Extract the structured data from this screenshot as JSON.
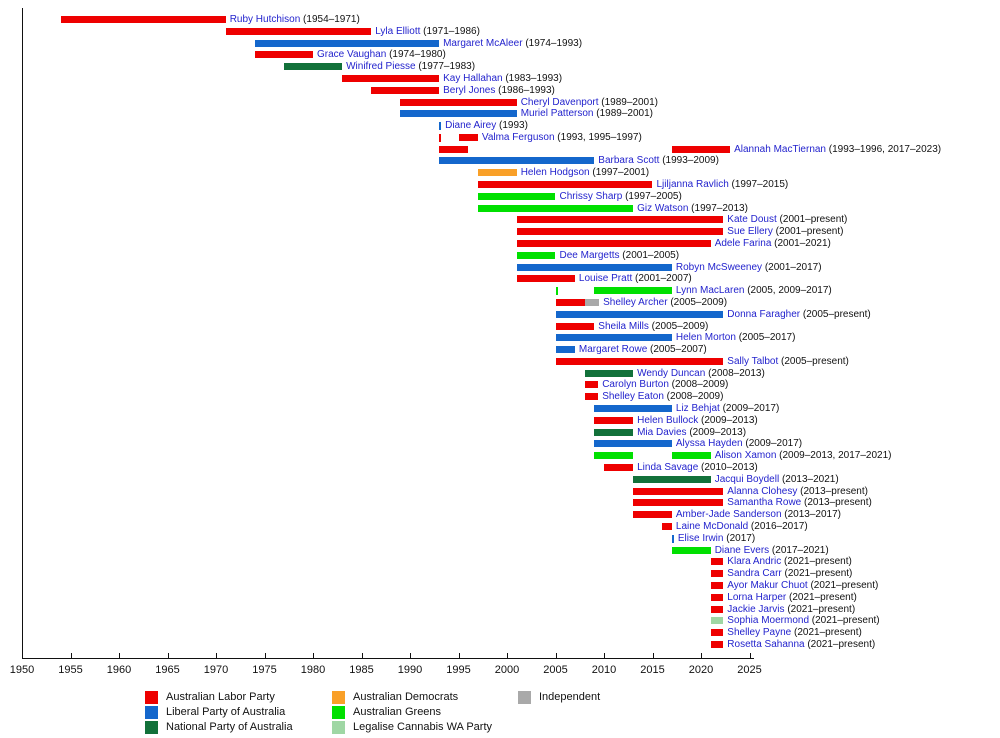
{
  "chart_data": {
    "type": "bar",
    "variant": "gantt-timeline",
    "title": "",
    "xlabel": "",
    "ylabel": "",
    "grid": false,
    "legend_position": "bottom",
    "axis": {
      "min": 1950,
      "max": 2025,
      "step": 5,
      "unit": "year",
      "present_value": 2022.3
    },
    "x_ticks": [
      1950,
      1955,
      1960,
      1965,
      1970,
      1975,
      1980,
      1985,
      1990,
      1995,
      2000,
      2005,
      2010,
      2015,
      2020,
      2025
    ],
    "text_colors": {
      "name": "#2323cd",
      "years": "#111111",
      "axis": "#111111"
    },
    "parties": {
      "labor": {
        "label": "Australian Labor Party",
        "color": "#ee0000"
      },
      "liberal": {
        "label": "Liberal Party of Australia",
        "color": "#1467cc"
      },
      "national": {
        "label": "National Party of Australia",
        "color": "#12713a"
      },
      "democrats": {
        "label": "Australian Democrats",
        "color": "#f9a028"
      },
      "greens": {
        "label": "Australian Greens",
        "color": "#00e000"
      },
      "legalise_cannabis": {
        "label": "Legalise Cannabis WA Party",
        "color": "#9fd7a4"
      },
      "independent": {
        "label": "Independent",
        "color": "#a9a9a9"
      }
    },
    "legend": {
      "columns": [
        [
          "labor",
          "liberal",
          "national"
        ],
        [
          "democrats",
          "greens",
          "legalise_cannabis"
        ],
        [
          "independent"
        ]
      ]
    },
    "people": [
      {
        "name": "Ruby Hutchison",
        "years": "(1954–1971)",
        "segments": [
          {
            "from": 1954,
            "to": 1971,
            "party": "labor"
          }
        ]
      },
      {
        "name": "Lyla Elliott",
        "years": "(1971–1986)",
        "segments": [
          {
            "from": 1971,
            "to": 1986,
            "party": "labor"
          }
        ]
      },
      {
        "name": "Margaret McAleer",
        "years": "(1974–1993)",
        "segments": [
          {
            "from": 1974,
            "to": 1993,
            "party": "liberal"
          }
        ]
      },
      {
        "name": "Grace Vaughan",
        "years": "(1974–1980)",
        "segments": [
          {
            "from": 1974,
            "to": 1980,
            "party": "labor"
          }
        ]
      },
      {
        "name": "Winifred Piesse",
        "years": "(1977–1983)",
        "segments": [
          {
            "from": 1977,
            "to": 1983,
            "party": "national"
          }
        ]
      },
      {
        "name": "Kay Hallahan",
        "years": "(1983–1993)",
        "segments": [
          {
            "from": 1983,
            "to": 1993,
            "party": "labor"
          }
        ]
      },
      {
        "name": "Beryl Jones",
        "years": "(1986–1993)",
        "segments": [
          {
            "from": 1986,
            "to": 1993,
            "party": "labor"
          }
        ]
      },
      {
        "name": "Cheryl Davenport",
        "years": "(1989–2001)",
        "segments": [
          {
            "from": 1989,
            "to": 2001,
            "party": "labor"
          }
        ]
      },
      {
        "name": "Muriel Patterson",
        "years": "(1989–2001)",
        "segments": [
          {
            "from": 1989,
            "to": 2001,
            "party": "liberal"
          }
        ]
      },
      {
        "name": "Diane Airey",
        "years": "(1993)",
        "segments": [],
        "marks": [
          {
            "year": 1993,
            "party": "liberal"
          }
        ]
      },
      {
        "name": "Valma Ferguson",
        "years": "(1993, 1995–1997)",
        "segments": [
          {
            "from": 1995,
            "to": 1997,
            "party": "labor"
          }
        ],
        "marks": [
          {
            "year": 1993,
            "party": "labor"
          }
        ]
      },
      {
        "name": "Alannah MacTiernan",
        "years": "(1993–1996, 2017–2023)",
        "segments": [
          {
            "from": 1993,
            "to": 1996,
            "party": "labor"
          },
          {
            "from": 2017,
            "to": 2023,
            "party": "labor"
          }
        ]
      },
      {
        "name": "Barbara Scott",
        "years": "(1993–2009)",
        "segments": [
          {
            "from": 1993,
            "to": 2009,
            "party": "liberal"
          }
        ]
      },
      {
        "name": "Helen Hodgson",
        "years": "(1997–2001)",
        "segments": [
          {
            "from": 1997,
            "to": 2001,
            "party": "democrats"
          }
        ]
      },
      {
        "name": "Ljiljanna Ravlich",
        "years": "(1997–2015)",
        "segments": [
          {
            "from": 1997,
            "to": 2015,
            "party": "labor"
          }
        ]
      },
      {
        "name": "Chrissy Sharp",
        "years": "(1997–2005)",
        "segments": [
          {
            "from": 1997,
            "to": 2005,
            "party": "greens"
          }
        ]
      },
      {
        "name": "Giz Watson",
        "years": "(1997–2013)",
        "segments": [
          {
            "from": 1997,
            "to": 2013,
            "party": "greens"
          }
        ]
      },
      {
        "name": "Kate Doust",
        "years": "(2001–present)",
        "segments": [
          {
            "from": 2001,
            "to": "present",
            "party": "labor"
          }
        ]
      },
      {
        "name": "Sue Ellery",
        "years": "(2001–present)",
        "segments": [
          {
            "from": 2001,
            "to": "present",
            "party": "labor"
          }
        ]
      },
      {
        "name": "Adele Farina",
        "years": "(2001–2021)",
        "segments": [
          {
            "from": 2001,
            "to": 2021,
            "party": "labor"
          }
        ]
      },
      {
        "name": "Dee Margetts",
        "years": "(2001–2005)",
        "segments": [
          {
            "from": 2001,
            "to": 2005,
            "party": "greens"
          }
        ]
      },
      {
        "name": "Robyn McSweeney",
        "years": "(2001–2017)",
        "segments": [
          {
            "from": 2001,
            "to": 2017,
            "party": "liberal"
          }
        ]
      },
      {
        "name": "Louise Pratt",
        "years": "(2001–2007)",
        "segments": [
          {
            "from": 2001,
            "to": 2007,
            "party": "labor"
          }
        ]
      },
      {
        "name": "Lynn MacLaren",
        "years": "(2005, 2009–2017)",
        "segments": [
          {
            "from": 2009,
            "to": 2017,
            "party": "greens"
          }
        ],
        "marks": [
          {
            "year": 2005,
            "party": "greens"
          }
        ]
      },
      {
        "name": "Shelley Archer",
        "years": "(2005–2009)",
        "segments": [
          {
            "from": 2005,
            "to": 2008,
            "party": "labor"
          },
          {
            "from": 2008,
            "to": 2009.5,
            "party": "independent"
          }
        ]
      },
      {
        "name": "Donna Faragher",
        "years": "(2005–present)",
        "segments": [
          {
            "from": 2005,
            "to": "present",
            "party": "liberal"
          }
        ]
      },
      {
        "name": "Sheila Mills",
        "years": "(2005–2009)",
        "segments": [
          {
            "from": 2005,
            "to": 2009,
            "party": "labor"
          }
        ]
      },
      {
        "name": "Helen Morton",
        "years": "(2005–2017)",
        "segments": [
          {
            "from": 2005,
            "to": 2017,
            "party": "liberal"
          }
        ]
      },
      {
        "name": "Margaret Rowe",
        "years": "(2005–2007)",
        "segments": [
          {
            "from": 2005,
            "to": 2007,
            "party": "liberal"
          }
        ]
      },
      {
        "name": "Sally Talbot",
        "years": "(2005–present)",
        "segments": [
          {
            "from": 2005,
            "to": "present",
            "party": "labor"
          }
        ]
      },
      {
        "name": "Wendy Duncan",
        "years": "(2008–2013)",
        "segments": [
          {
            "from": 2008,
            "to": 2013,
            "party": "national"
          }
        ]
      },
      {
        "name": "Carolyn Burton",
        "years": "(2008–2009)",
        "segments": [
          {
            "from": 2008,
            "to": 2009.4,
            "party": "labor"
          }
        ]
      },
      {
        "name": "Shelley Eaton",
        "years": "(2008–2009)",
        "segments": [
          {
            "from": 2008,
            "to": 2009.4,
            "party": "labor"
          }
        ]
      },
      {
        "name": "Liz Behjat",
        "years": "(2009–2017)",
        "segments": [
          {
            "from": 2009,
            "to": 2017,
            "party": "liberal"
          }
        ]
      },
      {
        "name": "Helen Bullock",
        "years": "(2009–2013)",
        "segments": [
          {
            "from": 2009,
            "to": 2013,
            "party": "labor"
          }
        ]
      },
      {
        "name": "Mia Davies",
        "years": "(2009–2013)",
        "segments": [
          {
            "from": 2009,
            "to": 2013,
            "party": "national"
          }
        ]
      },
      {
        "name": "Alyssa Hayden",
        "years": "(2009–2017)",
        "segments": [
          {
            "from": 2009,
            "to": 2017,
            "party": "liberal"
          }
        ]
      },
      {
        "name": "Alison Xamon",
        "years": "(2009–2013, 2017–2021)",
        "segments": [
          {
            "from": 2009,
            "to": 2013,
            "party": "greens"
          },
          {
            "from": 2017,
            "to": 2021,
            "party": "greens"
          }
        ]
      },
      {
        "name": "Linda Savage",
        "years": "(2010–2013)",
        "segments": [
          {
            "from": 2010,
            "to": 2013,
            "party": "labor"
          }
        ]
      },
      {
        "name": "Jacqui Boydell",
        "years": "(2013–2021)",
        "segments": [
          {
            "from": 2013,
            "to": 2021,
            "party": "national"
          }
        ]
      },
      {
        "name": "Alanna Clohesy",
        "years": "(2013–present)",
        "segments": [
          {
            "from": 2013,
            "to": "present",
            "party": "labor"
          }
        ]
      },
      {
        "name": "Samantha Rowe",
        "years": "(2013–present)",
        "segments": [
          {
            "from": 2013,
            "to": "present",
            "party": "labor"
          }
        ]
      },
      {
        "name": "Amber-Jade Sanderson",
        "years": "(2013–2017)",
        "segments": [
          {
            "from": 2013,
            "to": 2017,
            "party": "labor"
          }
        ]
      },
      {
        "name": "Laine McDonald",
        "years": "(2016–2017)",
        "segments": [
          {
            "from": 2016,
            "to": 2017,
            "party": "labor"
          }
        ]
      },
      {
        "name": "Elise Irwin",
        "years": "(2017)",
        "segments": [],
        "marks": [
          {
            "year": 2017,
            "party": "liberal"
          }
        ]
      },
      {
        "name": "Diane Evers",
        "years": "(2017–2021)",
        "segments": [
          {
            "from": 2017,
            "to": 2021,
            "party": "greens"
          }
        ]
      },
      {
        "name": "Klara Andric",
        "years": "(2021–present)",
        "segments": [
          {
            "from": 2021,
            "to": "present",
            "party": "labor"
          }
        ]
      },
      {
        "name": "Sandra Carr",
        "years": "(2021–present)",
        "segments": [
          {
            "from": 2021,
            "to": "present",
            "party": "labor"
          }
        ]
      },
      {
        "name": "Ayor Makur Chuot",
        "years": "(2021–present)",
        "segments": [
          {
            "from": 2021,
            "to": "present",
            "party": "labor"
          }
        ]
      },
      {
        "name": "Lorna Harper",
        "years": "(2021–present)",
        "segments": [
          {
            "from": 2021,
            "to": "present",
            "party": "labor"
          }
        ]
      },
      {
        "name": "Jackie Jarvis",
        "years": "(2021–present)",
        "segments": [
          {
            "from": 2021,
            "to": "present",
            "party": "labor"
          }
        ]
      },
      {
        "name": "Sophia Moermond",
        "years": "(2021–present)",
        "segments": [
          {
            "from": 2021,
            "to": "present",
            "party": "legalise_cannabis"
          }
        ]
      },
      {
        "name": "Shelley Payne",
        "years": "(2021–present)",
        "segments": [
          {
            "from": 2021,
            "to": "present",
            "party": "labor"
          }
        ]
      },
      {
        "name": "Rosetta Sahanna",
        "years": "(2021–present)",
        "segments": [
          {
            "from": 2021,
            "to": "present",
            "party": "labor"
          }
        ]
      }
    ]
  }
}
